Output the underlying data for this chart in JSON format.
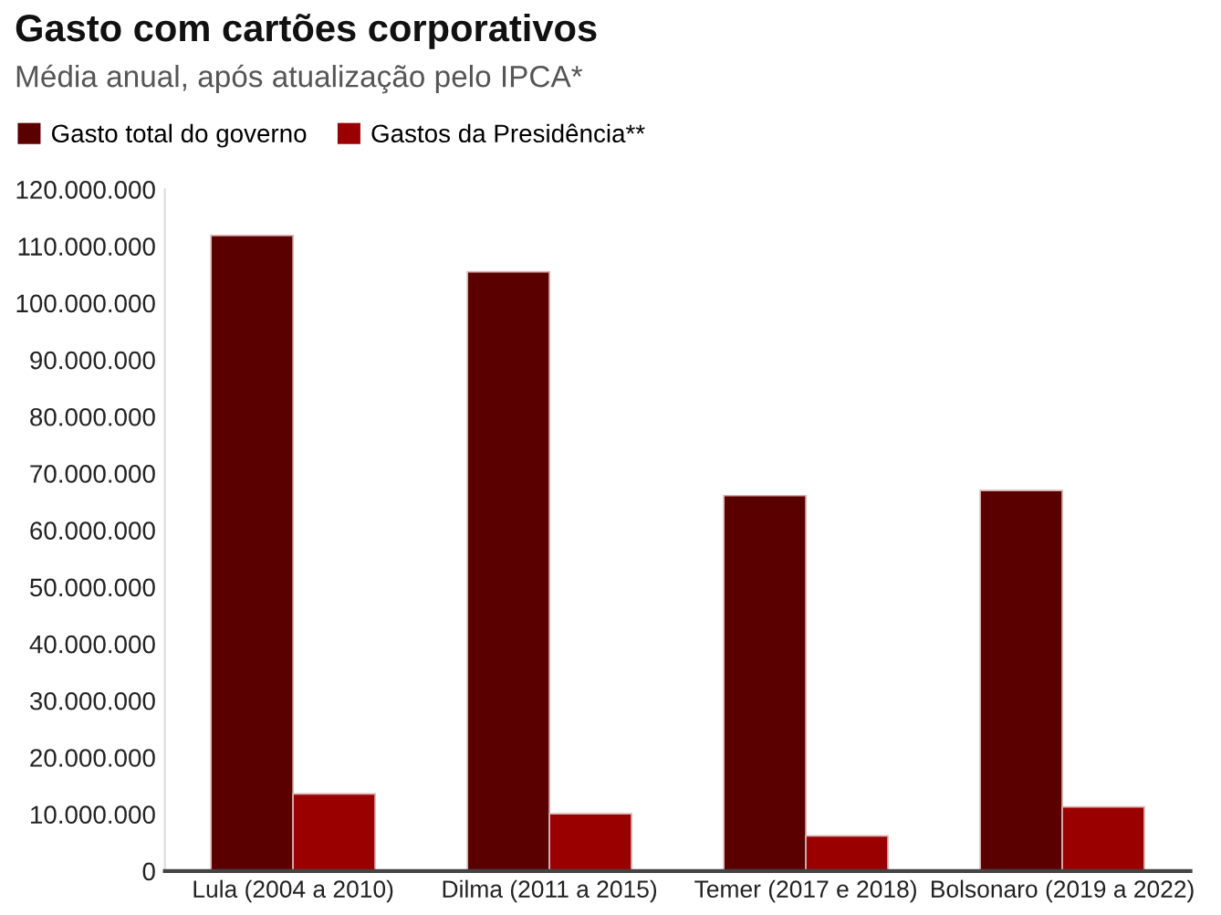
{
  "chart_data": {
    "type": "bar",
    "title": "Gasto com cartões corporativos",
    "subtitle": "Média anual, após atualização pelo IPCA*",
    "categories": [
      "Lula (2004 a 2010)",
      "Dilma (2011 a 2015)",
      "Temer (2017 e 2018)",
      "Bolsonaro (2019 a 2022)"
    ],
    "series": [
      {
        "name": "Gasto total do governo",
        "color": "#5a0000",
        "values": [
          111900000,
          105500000,
          66100000,
          67000000
        ]
      },
      {
        "name": "Gastos da Presidência**",
        "color": "#9b0000",
        "values": [
          13600000,
          10100000,
          6200000,
          11300000
        ]
      }
    ],
    "ylim": [
      0,
      120000000
    ],
    "yticks": [
      {
        "value": 0,
        "label": "0"
      },
      {
        "value": 10000000,
        "label": "10.000.000"
      },
      {
        "value": 20000000,
        "label": "20.000.000"
      },
      {
        "value": 30000000,
        "label": "30.000.000"
      },
      {
        "value": 40000000,
        "label": "40.000.000"
      },
      {
        "value": 50000000,
        "label": "50.000.000"
      },
      {
        "value": 60000000,
        "label": "60.000.000"
      },
      {
        "value": 70000000,
        "label": "70.000.000"
      },
      {
        "value": 80000000,
        "label": "80.000.000"
      },
      {
        "value": 90000000,
        "label": "90.000.000"
      },
      {
        "value": 100000000,
        "label": "100.000.000"
      },
      {
        "value": 110000000,
        "label": "110.000.000"
      },
      {
        "value": 120000000,
        "label": "120.000.000"
      }
    ],
    "grid": false,
    "legend": "top left"
  }
}
